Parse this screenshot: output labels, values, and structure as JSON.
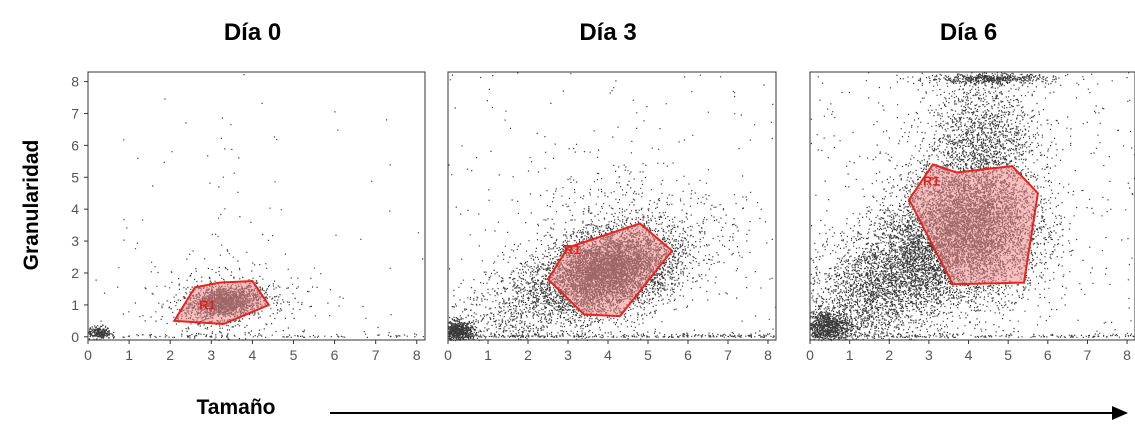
{
  "x_axis_label": "Tamaño",
  "y_axis_label": "Granularidad",
  "colors": {
    "dots": "#3a3a3a",
    "gate_stroke": "#e8231b",
    "gate_fill": "#f08a8a",
    "axis": "#333333",
    "tick_text": "#555555",
    "arrow": "#000000"
  },
  "chart_data": [
    {
      "type": "scatter",
      "title": "Día 0",
      "xlim": [
        0,
        8.2
      ],
      "ylim": [
        -0.1,
        8.3
      ],
      "xticks": [
        "0",
        "1",
        "2",
        "3",
        "4",
        "5",
        "6",
        "7",
        "8"
      ],
      "yticks": [
        "0",
        "1",
        "2",
        "3",
        "4",
        "5",
        "6",
        "7",
        "8"
      ],
      "show_yticks": true,
      "gate": {
        "label": "R1",
        "label_at": [
          2.7,
          0.85
        ],
        "polygon": [
          [
            2.1,
            0.5
          ],
          [
            2.6,
            1.55
          ],
          [
            3.2,
            1.7
          ],
          [
            4.0,
            1.75
          ],
          [
            4.4,
            1.0
          ],
          [
            3.3,
            0.4
          ]
        ]
      },
      "clusters": [
        {
          "center": [
            3.3,
            1.1
          ],
          "spread": [
            0.45,
            0.25
          ],
          "angle": 0.2,
          "count": 1800
        },
        {
          "center": [
            3.3,
            1.0
          ],
          "spread": [
            1.0,
            0.7
          ],
          "angle": 0.2,
          "count": 400
        },
        {
          "center": [
            0.25,
            0.15
          ],
          "spread": [
            0.15,
            0.1
          ],
          "angle": 0,
          "count": 250
        },
        {
          "center": [
            3.5,
            3.0
          ],
          "spread": [
            0.5,
            1.5
          ],
          "angle": 0,
          "count": 40
        }
      ],
      "background_points": 60,
      "baseline_points": 120
    },
    {
      "type": "scatter",
      "title": "Día 3",
      "xlim": [
        0,
        8.2
      ],
      "ylim": [
        -0.1,
        8.3
      ],
      "xticks": [
        "0",
        "1",
        "2",
        "3",
        "4",
        "5",
        "6",
        "7",
        "8"
      ],
      "yticks": [],
      "show_yticks": false,
      "gate": {
        "label": "R1",
        "label_at": [
          2.9,
          2.6
        ],
        "polygon": [
          [
            2.5,
            1.8
          ],
          [
            3.0,
            2.8
          ],
          [
            4.8,
            3.55
          ],
          [
            5.6,
            2.7
          ],
          [
            4.3,
            0.65
          ],
          [
            3.4,
            0.7
          ]
        ]
      },
      "clusters": [
        {
          "center": [
            4.0,
            2.1
          ],
          "spread": [
            0.75,
            0.55
          ],
          "angle": 0.45,
          "count": 4500
        },
        {
          "center": [
            3.2,
            1.6
          ],
          "spread": [
            1.7,
            0.7
          ],
          "angle": 0.5,
          "count": 2500
        },
        {
          "center": [
            0.25,
            0.2
          ],
          "spread": [
            0.2,
            0.15
          ],
          "angle": 0,
          "count": 700
        },
        {
          "center": [
            4.5,
            3.2
          ],
          "spread": [
            1.2,
            1.3
          ],
          "angle": 0.4,
          "count": 500
        }
      ],
      "background_points": 200,
      "baseline_points": 300
    },
    {
      "type": "scatter",
      "title": "Día 6",
      "xlim": [
        0,
        8.2
      ],
      "ylim": [
        -0.1,
        8.3
      ],
      "xticks": [
        "0",
        "1",
        "2",
        "3",
        "4",
        "5",
        "6",
        "7",
        "8"
      ],
      "yticks": [],
      "show_yticks": false,
      "gate": {
        "label": "R1",
        "label_at": [
          2.85,
          4.75
        ],
        "polygon": [
          [
            2.5,
            4.3
          ],
          [
            3.1,
            5.4
          ],
          [
            3.7,
            5.15
          ],
          [
            5.1,
            5.35
          ],
          [
            5.75,
            4.5
          ],
          [
            5.4,
            1.7
          ],
          [
            3.6,
            1.65
          ]
        ]
      },
      "clusters": [
        {
          "center": [
            4.1,
            3.5
          ],
          "spread": [
            0.85,
            1.1
          ],
          "angle": 0.15,
          "count": 7000
        },
        {
          "center": [
            2.3,
            2.0
          ],
          "spread": [
            1.5,
            0.8
          ],
          "angle": 0.8,
          "count": 4500
        },
        {
          "center": [
            0.4,
            0.35
          ],
          "spread": [
            0.3,
            0.25
          ],
          "angle": 0,
          "count": 900
        },
        {
          "center": [
            4.4,
            6.3
          ],
          "spread": [
            0.7,
            1.0
          ],
          "angle": 0,
          "count": 1400
        },
        {
          "center": [
            4.5,
            8.1
          ],
          "spread": [
            0.8,
            0.08
          ],
          "angle": 0,
          "count": 500
        }
      ],
      "background_points": 400,
      "baseline_points": 200
    }
  ]
}
